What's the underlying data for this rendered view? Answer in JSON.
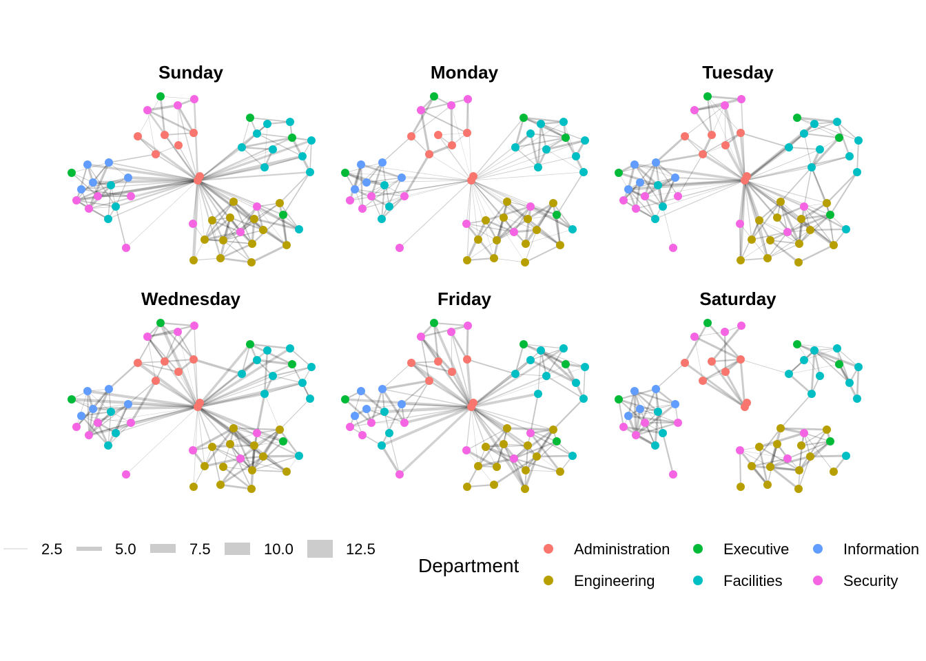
{
  "panels": [
    {
      "title": "Sunday",
      "hub": true
    },
    {
      "title": "Monday",
      "hub": true
    },
    {
      "title": "Tuesday",
      "hub": true
    },
    {
      "title": "Wednesday",
      "hub": true
    },
    {
      "title": "Friday",
      "hub": true
    },
    {
      "title": "Saturday",
      "hub": false
    }
  ],
  "width_legend": {
    "labels": [
      "2.5",
      "5.0",
      "7.5",
      "10.0",
      "12.5"
    ]
  },
  "department_legend": {
    "title": "Department",
    "items": [
      {
        "label": "Administration",
        "color": "#F8766D"
      },
      {
        "label": "Executive",
        "color": "#00BA38"
      },
      {
        "label": "Information",
        "color": "#619CFF"
      },
      {
        "label": "Engineering",
        "color": "#B79F00"
      },
      {
        "label": "Facilities",
        "color": "#00BFC4"
      },
      {
        "label": "Security",
        "color": "#F564E3"
      }
    ]
  }
}
